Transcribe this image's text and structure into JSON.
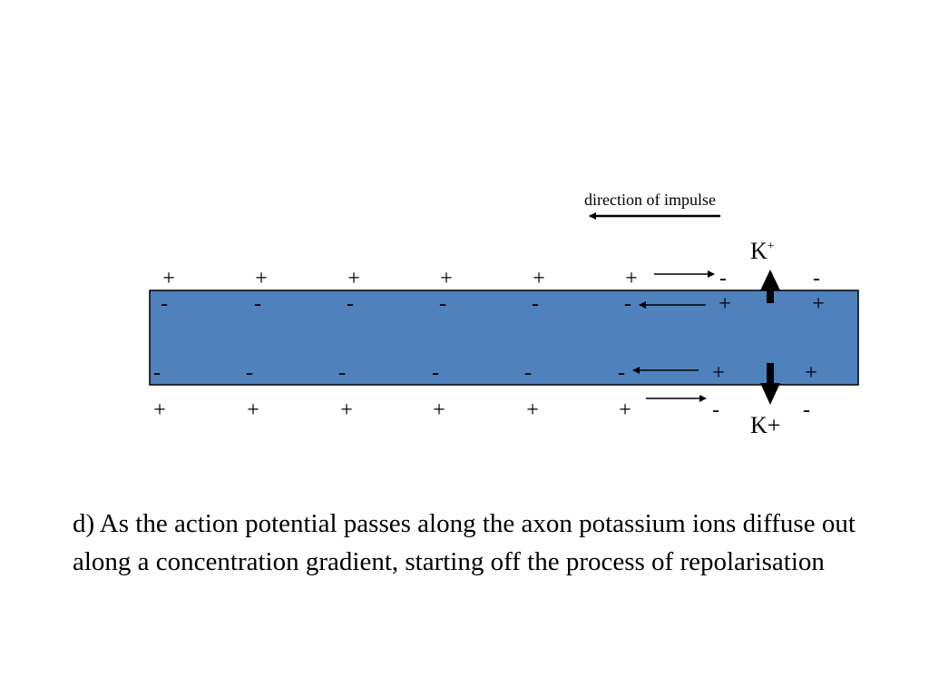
{
  "diagram": {
    "direction_label": "direction of impulse",
    "k_top": "K",
    "k_top_sup": "+",
    "k_bottom": "K+",
    "rows": {
      "outer_top": [
        "+",
        "+",
        "+",
        "+",
        "+",
        "+",
        "-",
        "-"
      ],
      "inner_top": [
        "-",
        "-",
        "-",
        "-",
        "-",
        "-",
        "+",
        "+"
      ],
      "inner_bottom": [
        "-",
        "-",
        "-",
        "-",
        "-",
        "-",
        "+",
        "+"
      ],
      "outer_bottom": [
        "+",
        "+",
        "+",
        "+",
        "+",
        "+",
        "-",
        "-"
      ]
    },
    "colors": {
      "axon": "#4f81bd",
      "outline": "#000000"
    }
  },
  "caption": "d) As the action potential passes along the axon potassium ions diffuse out along a concentration gradient, starting off the process of repolarisation"
}
